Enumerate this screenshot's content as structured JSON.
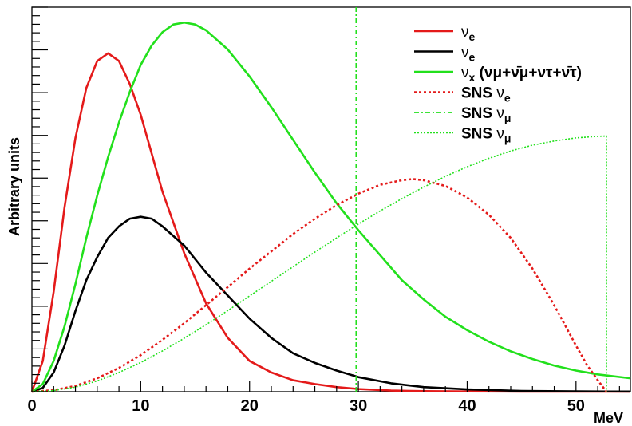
{
  "chart_data": {
    "type": "line",
    "title": "",
    "xlabel": "MeV",
    "ylabel": "Arbitrary units",
    "xlim": [
      0,
      55
    ],
    "ylim": [
      0,
      1.0
    ],
    "x_tick_labels": [
      "0",
      "10",
      "20",
      "30",
      "40",
      "50"
    ],
    "x_ticks": [
      0,
      10,
      20,
      30,
      40,
      50
    ],
    "y_tick_labels_shown": false,
    "grid": false,
    "legend_position": "top-right",
    "series": [
      {
        "name": "νe",
        "legend_label": {
          "base": "ν",
          "sub": "e"
        },
        "color": "#e41a1a",
        "style": "solid",
        "x": [
          0,
          1,
          2,
          3,
          4,
          5,
          6,
          7,
          8,
          9,
          10,
          11,
          12,
          14,
          16,
          18,
          20,
          22,
          24,
          26,
          28,
          30,
          33,
          36,
          40,
          45,
          50,
          55
        ],
        "y": [
          0,
          0.08,
          0.26,
          0.48,
          0.66,
          0.79,
          0.86,
          0.88,
          0.86,
          0.8,
          0.72,
          0.62,
          0.52,
          0.36,
          0.23,
          0.14,
          0.08,
          0.05,
          0.03,
          0.02,
          0.012,
          0.007,
          0.003,
          0.0015,
          0.0006,
          0.0002,
          0.0001,
          0
        ]
      },
      {
        "name": "ν̄e",
        "legend_label": {
          "base": "ν",
          "sub": "e",
          "bar": true
        },
        "color": "#000000",
        "style": "solid",
        "x": [
          0,
          1,
          2,
          3,
          4,
          5,
          6,
          7,
          8,
          9,
          10,
          11,
          12,
          14,
          16,
          18,
          20,
          22,
          24,
          26,
          28,
          30,
          33,
          36,
          40,
          45,
          50,
          55
        ],
        "y": [
          0,
          0.01,
          0.05,
          0.12,
          0.21,
          0.29,
          0.35,
          0.4,
          0.43,
          0.45,
          0.455,
          0.45,
          0.43,
          0.38,
          0.31,
          0.25,
          0.19,
          0.14,
          0.1,
          0.075,
          0.055,
          0.038,
          0.022,
          0.012,
          0.006,
          0.002,
          0.0008,
          0.0003
        ]
      },
      {
        "name": "νx (νμ+ν̄μ+ντ+ν̄τ)",
        "legend_label": {
          "base": "ν",
          "sub": "x",
          "suffix": " (νμ+ν̄μ+ντ+ν̄τ)"
        },
        "color": "#22e01c",
        "style": "solid",
        "x": [
          0,
          1,
          2,
          3,
          4,
          5,
          6,
          7,
          8,
          9,
          10,
          11,
          12,
          13,
          14,
          15,
          16,
          18,
          20,
          22,
          24,
          26,
          28,
          30,
          32,
          34,
          36,
          38,
          40,
          42,
          44,
          46,
          48,
          50,
          52,
          55
        ],
        "y": [
          0,
          0.02,
          0.08,
          0.17,
          0.28,
          0.4,
          0.51,
          0.61,
          0.7,
          0.78,
          0.85,
          0.9,
          0.935,
          0.955,
          0.96,
          0.955,
          0.94,
          0.89,
          0.82,
          0.74,
          0.655,
          0.57,
          0.49,
          0.42,
          0.355,
          0.29,
          0.24,
          0.195,
          0.16,
          0.13,
          0.105,
          0.085,
          0.068,
          0.055,
          0.045,
          0.035
        ]
      },
      {
        "name": "SNS νe",
        "legend_label": {
          "prefix": "SNS ",
          "base": "ν",
          "sub": "e"
        },
        "color": "#e41a1a",
        "style": "dotted",
        "x": [
          0,
          2,
          4,
          6,
          8,
          10,
          12,
          14,
          16,
          18,
          20,
          22,
          24,
          26,
          28,
          30,
          32,
          34,
          35,
          36,
          38,
          40,
          42,
          44,
          46,
          48,
          50,
          51,
          52,
          52.8
        ],
        "y": [
          0,
          0.004,
          0.015,
          0.035,
          0.062,
          0.095,
          0.135,
          0.178,
          0.225,
          0.272,
          0.32,
          0.365,
          0.41,
          0.45,
          0.485,
          0.515,
          0.538,
          0.55,
          0.553,
          0.55,
          0.535,
          0.505,
          0.46,
          0.4,
          0.32,
          0.225,
          0.12,
          0.07,
          0.03,
          0
        ]
      },
      {
        "name": "SNS νμ",
        "legend_label": {
          "prefix": "SNS ",
          "base": "ν",
          "sub": "μ"
        },
        "color": "#22e01c",
        "style": "dashdot",
        "x": [
          29.8,
          29.8
        ],
        "y": [
          0,
          1.0
        ]
      },
      {
        "name": "SNS ν̄μ",
        "legend_label": {
          "prefix": "SNS ",
          "base": "ν",
          "sub": "μ",
          "bar": true
        },
        "color": "#22e01c",
        "style": "dotted-fine",
        "x": [
          0,
          2,
          4,
          6,
          8,
          10,
          12,
          14,
          16,
          18,
          20,
          22,
          24,
          26,
          28,
          30,
          32,
          34,
          36,
          38,
          40,
          42,
          44,
          46,
          48,
          50,
          52,
          52.8,
          52.8
        ],
        "y": [
          0,
          0.003,
          0.012,
          0.028,
          0.05,
          0.076,
          0.106,
          0.139,
          0.174,
          0.211,
          0.249,
          0.287,
          0.325,
          0.363,
          0.4,
          0.436,
          0.47,
          0.502,
          0.532,
          0.56,
          0.585,
          0.607,
          0.626,
          0.641,
          0.652,
          0.66,
          0.664,
          0.665,
          0
        ]
      }
    ]
  }
}
